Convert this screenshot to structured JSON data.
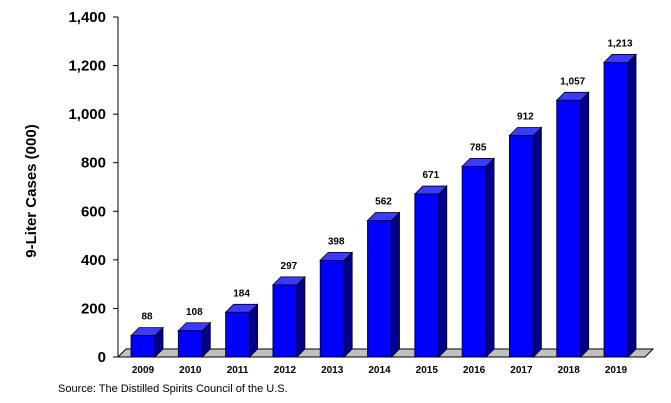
{
  "chart_data": {
    "type": "bar",
    "title": "",
    "xlabel": "",
    "ylabel": "9-Liter Cases (000)",
    "categories": [
      "2009",
      "2010",
      "2011",
      "2012",
      "2013",
      "2014",
      "2015",
      "2016",
      "2017",
      "2018",
      "2019"
    ],
    "values": [
      88,
      108,
      184,
      297,
      398,
      562,
      671,
      785,
      912,
      1057,
      1213
    ],
    "data_labels": [
      "88",
      "108",
      "184",
      "297",
      "398",
      "562",
      "671",
      "785",
      "912",
      "1,057",
      "1,213"
    ],
    "ylim": [
      0,
      1400
    ],
    "yticks": [
      0,
      200,
      400,
      600,
      800,
      1000,
      1200,
      1400
    ],
    "ytick_labels": [
      "0",
      "200",
      "400",
      "600",
      "800",
      "1,000",
      "1,200",
      "1,400"
    ],
    "grid": false,
    "legend": "none",
    "style": "3d",
    "colors": {
      "bar_front": "#0000ff",
      "bar_side": "#00008b",
      "bar_top": "#3b3bff",
      "floor": "#c0c0c0"
    }
  },
  "source_note": "Source:  The Distilled Spirits Council of the U.S."
}
